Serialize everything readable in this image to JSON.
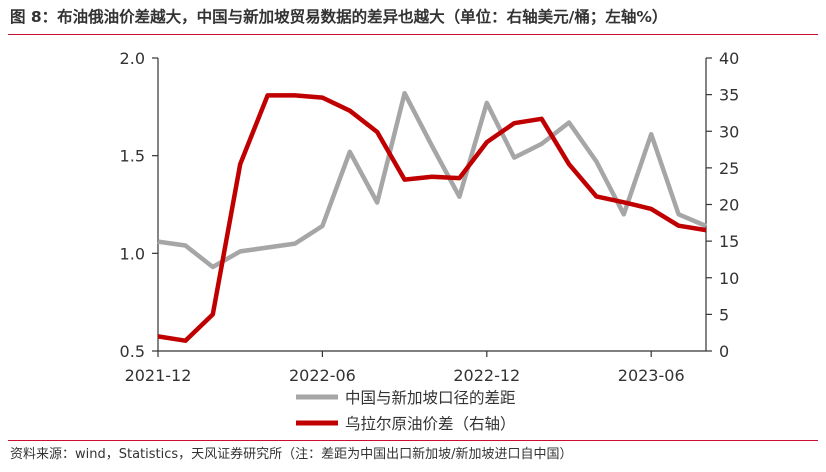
{
  "figure": {
    "title": "图 8：布油俄油价差越大，中国与新加坡贸易数据的差异也越大（单位：右轴美元/桶；左轴%）",
    "source": "资料来源：wind，Statistics，天风证券研究所（注：差距为中国出口新加坡/新加坡进口自中国）"
  },
  "colors": {
    "accent_rule": "#c8102e",
    "series_gray": "#a6a6a6",
    "series_red": "#c00000",
    "axis": "#333333"
  },
  "chart_data": {
    "type": "line",
    "x": [
      "2021-12",
      "2022-01",
      "2022-02",
      "2022-03",
      "2022-04",
      "2022-05",
      "2022-06",
      "2022-07",
      "2022-08",
      "2022-09",
      "2022-10",
      "2022-11",
      "2022-12",
      "2023-01",
      "2023-02",
      "2023-03",
      "2023-04",
      "2023-05",
      "2023-06",
      "2023-07",
      "2023-08"
    ],
    "x_tick_labels": [
      "2021-12",
      "2022-06",
      "2022-12",
      "2023-06"
    ],
    "x_tick_values": [
      "2021-12",
      "2022-06",
      "2022-12",
      "2023-06"
    ],
    "y_left": {
      "ylim": [
        0.5,
        2.0
      ],
      "ticks": [
        0.5,
        1.0,
        1.5,
        2.0
      ],
      "tick_labels": [
        "0.5",
        "1.0",
        "1.5",
        "2.0"
      ]
    },
    "y_right": {
      "ylim": [
        0,
        40
      ],
      "ticks": [
        0,
        5,
        10,
        15,
        20,
        25,
        30,
        35,
        40
      ],
      "tick_labels": [
        "0",
        "5",
        "10",
        "15",
        "20",
        "25",
        "30",
        "35",
        "40"
      ]
    },
    "series": [
      {
        "name": "中国与新加坡口径的差距",
        "axis": "left",
        "color": "#a6a6a6",
        "values": [
          1.06,
          1.04,
          0.93,
          1.01,
          1.03,
          1.05,
          1.14,
          1.52,
          1.26,
          1.82,
          1.55,
          1.29,
          1.77,
          1.49,
          1.56,
          1.67,
          1.47,
          1.2,
          1.61,
          1.2,
          1.14
        ]
      },
      {
        "name": "乌拉尔原油价差（右轴）",
        "axis": "right",
        "color": "#c00000",
        "values": [
          2.0,
          1.4,
          5.0,
          25.5,
          34.9,
          34.9,
          34.6,
          32.8,
          29.9,
          23.4,
          23.8,
          23.6,
          28.5,
          31.1,
          31.7,
          25.5,
          21.1,
          20.3,
          19.4,
          17.1,
          16.5
        ]
      }
    ],
    "legend": {
      "position": "bottom-right",
      "entries": [
        "中国与新加坡口径的差距",
        "乌拉尔原油价差（右轴）"
      ]
    },
    "grid": false
  }
}
